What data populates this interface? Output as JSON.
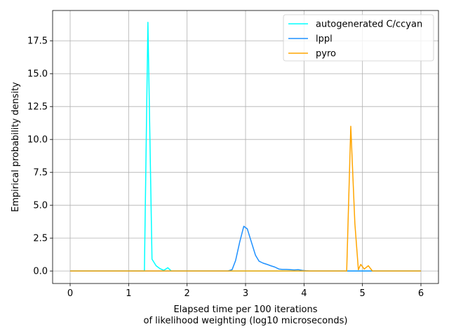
{
  "chart_data": {
    "type": "line",
    "title": "",
    "xlabel_lines": [
      "Elapsed time per 100 iterations",
      "of likelihood weighting (log10 microseconds)"
    ],
    "ylabel": "Empirical probability density",
    "xlim": [
      -0.3,
      6.3
    ],
    "ylim": [
      -0.95,
      19.8
    ],
    "xticks": [
      0,
      1,
      2,
      3,
      4,
      5,
      6
    ],
    "xtick_labels": [
      "0",
      "1",
      "2",
      "3",
      "4",
      "5",
      "6"
    ],
    "yticks": [
      0.0,
      2.5,
      5.0,
      7.5,
      10.0,
      12.5,
      15.0,
      17.5
    ],
    "ytick_labels": [
      "0.0",
      "2.5",
      "5.0",
      "7.5",
      "10.0",
      "12.5",
      "15.0",
      "17.5"
    ],
    "grid": true,
    "legend_position": "top-right",
    "series": [
      {
        "name": "autogenerated C/ccyan",
        "color": "#00ffff",
        "x": [
          0,
          1.27,
          1.33,
          1.4,
          1.47,
          1.53,
          1.6,
          1.67,
          1.73,
          6
        ],
        "y": [
          0,
          0,
          18.9,
          0.9,
          0.4,
          0.2,
          0.05,
          0.25,
          0,
          0
        ]
      },
      {
        "name": "lppl",
        "color": "#1e90ff",
        "x": [
          0,
          2.7,
          2.77,
          2.83,
          2.9,
          2.97,
          3.03,
          3.1,
          3.17,
          3.23,
          3.3,
          3.37,
          3.43,
          3.5,
          3.57,
          3.63,
          3.7,
          3.77,
          3.83,
          3.9,
          3.97,
          4.03,
          4.1,
          6
        ],
        "y": [
          0,
          0,
          0.1,
          0.8,
          2.2,
          3.4,
          3.2,
          2.2,
          1.2,
          0.75,
          0.6,
          0.5,
          0.4,
          0.3,
          0.15,
          0.12,
          0.12,
          0.1,
          0.08,
          0.1,
          0.05,
          0.02,
          0,
          0
        ]
      },
      {
        "name": "pyro",
        "color": "#ffa500",
        "x": [
          0,
          4.73,
          4.8,
          4.87,
          4.93,
          4.97,
          5.03,
          5.1,
          5.17,
          6
        ],
        "y": [
          0,
          0,
          11.0,
          3.6,
          0.1,
          0.5,
          0.15,
          0.4,
          0,
          0
        ]
      }
    ]
  }
}
